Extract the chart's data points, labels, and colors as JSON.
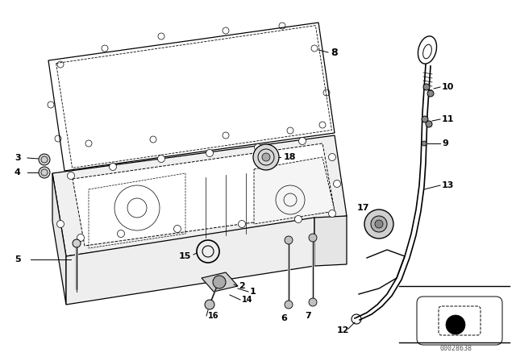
{
  "bg_color": "#ffffff",
  "line_color": "#000000",
  "fig_width": 6.4,
  "fig_height": 4.48,
  "dpi": 100,
  "watermark": "00028638"
}
